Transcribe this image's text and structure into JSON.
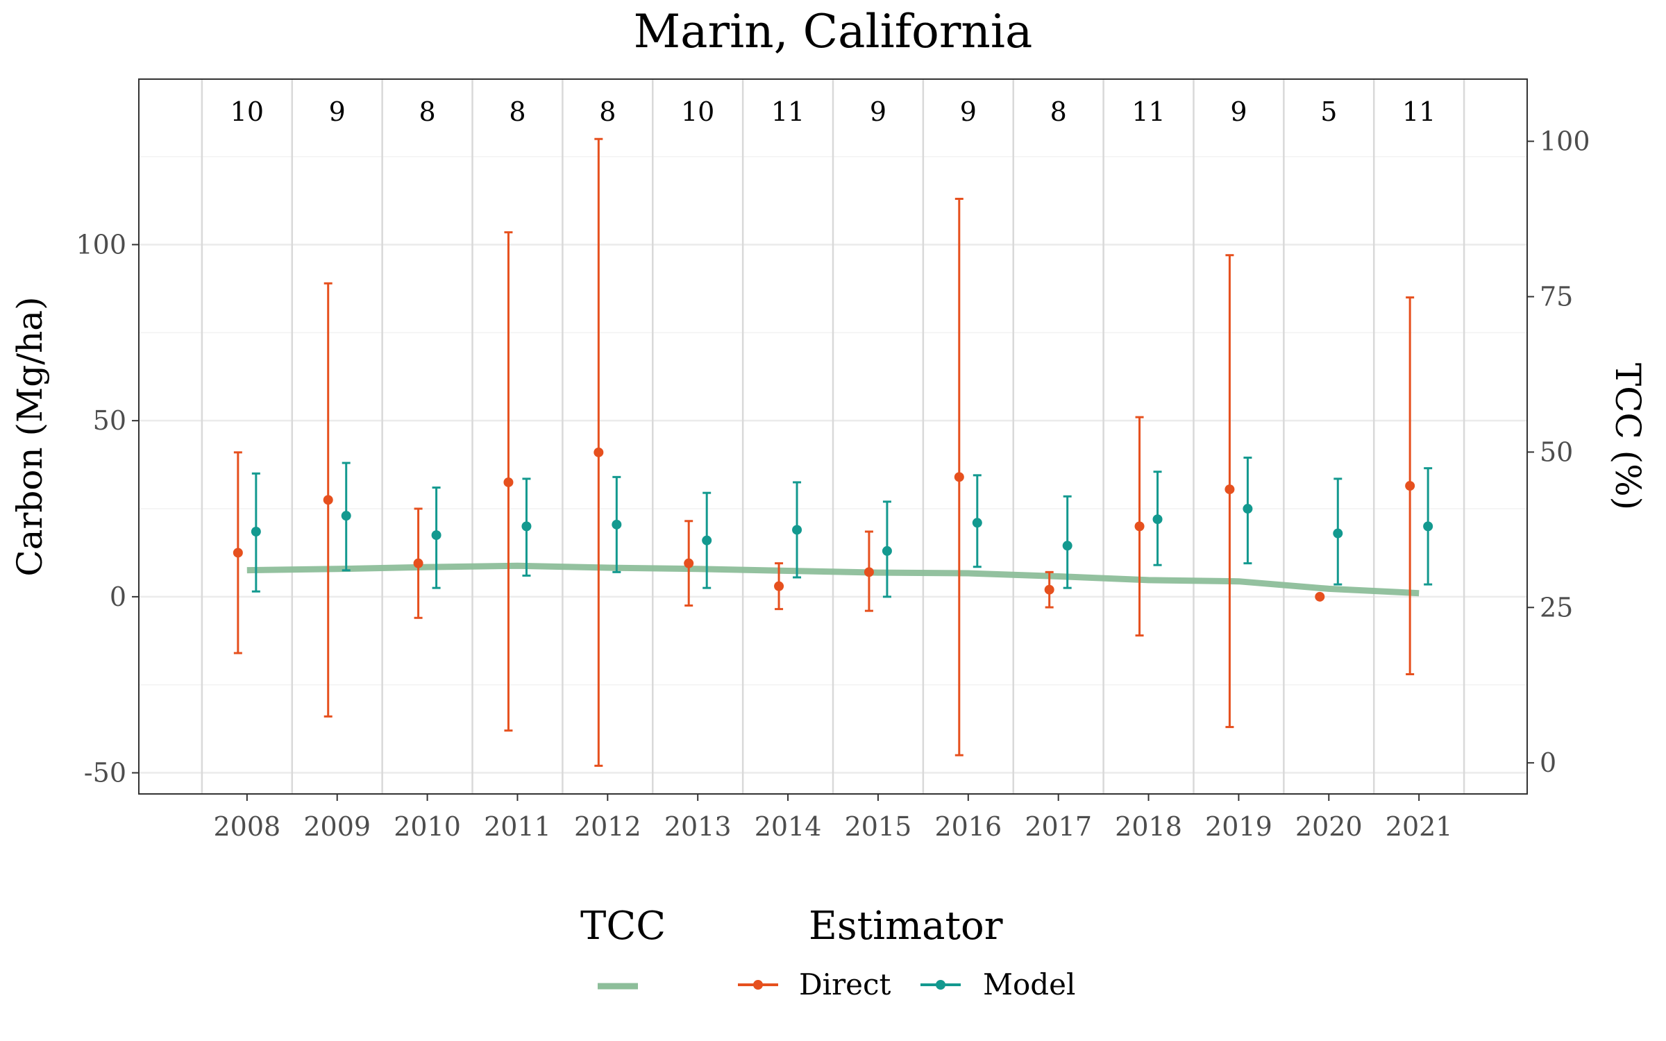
{
  "chart_data": {
    "type": "line",
    "title": "Marin, California",
    "xlabel": "",
    "ylabel": "Carbon (Mg/ha)",
    "y2label": "TCC (%)",
    "categories": [
      "2008",
      "2009",
      "2010",
      "2011",
      "2012",
      "2013",
      "2014",
      "2015",
      "2016",
      "2017",
      "2018",
      "2019",
      "2020",
      "2021"
    ],
    "counts": [
      "10",
      "9",
      "8",
      "8",
      "8",
      "10",
      "11",
      "9",
      "9",
      "8",
      "11",
      "9",
      "5",
      "11"
    ],
    "ylim": [
      -56,
      147
    ],
    "y2lim": [
      -5,
      110
    ],
    "yticks": [
      -50,
      0,
      50,
      100
    ],
    "y2ticks": [
      0,
      25,
      50,
      75,
      100
    ],
    "grid": true,
    "legend_position": "bottom",
    "series": [
      {
        "name": "Direct",
        "estimate": [
          12.5,
          27.5,
          9.5,
          32.5,
          41.0,
          9.5,
          3.0,
          7.0,
          34.0,
          2.0,
          20.0,
          30.5,
          0.0,
          31.5
        ],
        "lower": [
          -16.0,
          -34.0,
          -6.0,
          -38.0,
          -48.0,
          -2.5,
          -3.5,
          -4.0,
          -45.0,
          -3.0,
          -11.0,
          -37.0,
          null,
          -22.0
        ],
        "upper": [
          41.0,
          89.0,
          25.0,
          103.5,
          130.0,
          21.5,
          9.5,
          18.5,
          113.0,
          7.0,
          51.0,
          97.0,
          null,
          85.0
        ],
        "color": "#e6501e"
      },
      {
        "name": "Model",
        "estimate": [
          18.5,
          23.0,
          17.5,
          20.0,
          20.5,
          16.0,
          19.0,
          13.0,
          21.0,
          14.5,
          22.0,
          25.0,
          18.0,
          20.0
        ],
        "lower": [
          1.5,
          7.5,
          2.5,
          6.0,
          7.0,
          2.5,
          5.5,
          0.0,
          8.5,
          2.5,
          9.0,
          9.5,
          3.5,
          3.5
        ],
        "upper": [
          35.0,
          38.0,
          31.0,
          33.5,
          34.0,
          29.5,
          32.5,
          27.0,
          34.5,
          28.5,
          35.5,
          39.5,
          33.5,
          36.5
        ],
        "color": "#13998f"
      }
    ],
    "tcc": {
      "name": "",
      "values": [
        31.0,
        31.2,
        31.5,
        31.7,
        31.4,
        31.2,
        30.9,
        30.6,
        30.5,
        30.0,
        29.4,
        29.2,
        28.0,
        29.9
      ],
      "color": "#8dbe9a"
    },
    "tcc_values_end": 27.3,
    "legend": {
      "tcc_title": "TCC",
      "estimator_title": "Estimator",
      "items": [
        "Direct",
        "Model"
      ]
    }
  }
}
